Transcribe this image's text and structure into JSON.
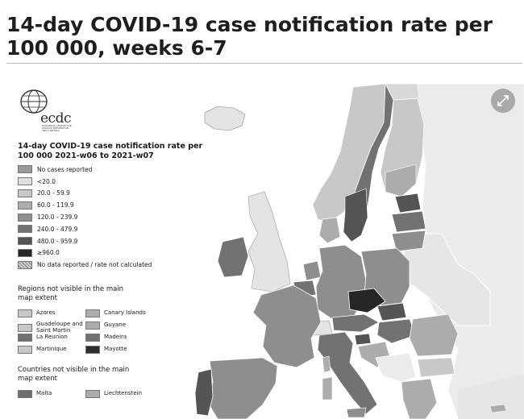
{
  "page": {
    "title": "14-day COVID-19 case notification rate per 100 000, weeks 6-7"
  },
  "logo": {
    "wordmark": "ecdc",
    "subtitle": "EUROPEAN CENTRE FOR DISEASE PREVENTION AND CONTROL"
  },
  "legend": {
    "title": "14-day COVID-19 case notification rate per 100 000 2021-w06 to 2021-w07",
    "items": [
      {
        "label": "No cases reported",
        "color": "#9a9a9a"
      },
      {
        "label": "<20.0",
        "color": "#e0e0e0"
      },
      {
        "label": "20.0 - 59.9",
        "color": "#c8c8c8"
      },
      {
        "label": "60.0 - 119.9",
        "color": "#acacac"
      },
      {
        "label": "120.0 - 239.9",
        "color": "#8e8e8e"
      },
      {
        "label": "240.0 - 479.9",
        "color": "#727272"
      },
      {
        "label": "480.0 - 959.9",
        "color": "#545454"
      },
      {
        "label": "≥960.0",
        "color": "#262626"
      },
      {
        "label": "No data reported / rate not calculated",
        "color": "hatch"
      }
    ]
  },
  "regions_not_visible": {
    "heading": "Regions not visible in the main map extent",
    "items": [
      {
        "label": "Azores",
        "color": "#c8c8c8"
      },
      {
        "label": "Canary Islands",
        "color": "#acacac"
      },
      {
        "label": "Guadeloupe and Saint Martin",
        "color": "#c8c8c8"
      },
      {
        "label": "Guyane",
        "color": "#acacac"
      },
      {
        "label": "La Reunion",
        "color": "#727272"
      },
      {
        "label": "Madeira",
        "color": "#727272"
      },
      {
        "label": "Martinique",
        "color": "#c8c8c8"
      },
      {
        "label": "Mayotte",
        "color": "#2e2e2e"
      }
    ]
  },
  "countries_not_visible": {
    "heading": "Countries not visible in the main map extent",
    "items": [
      {
        "label": "Malta",
        "color": "#6e6e6e"
      },
      {
        "label": "Liechtenstein",
        "color": "#acacac"
      }
    ]
  },
  "controls": {
    "expand_icon": "expand-arrows-icon"
  }
}
